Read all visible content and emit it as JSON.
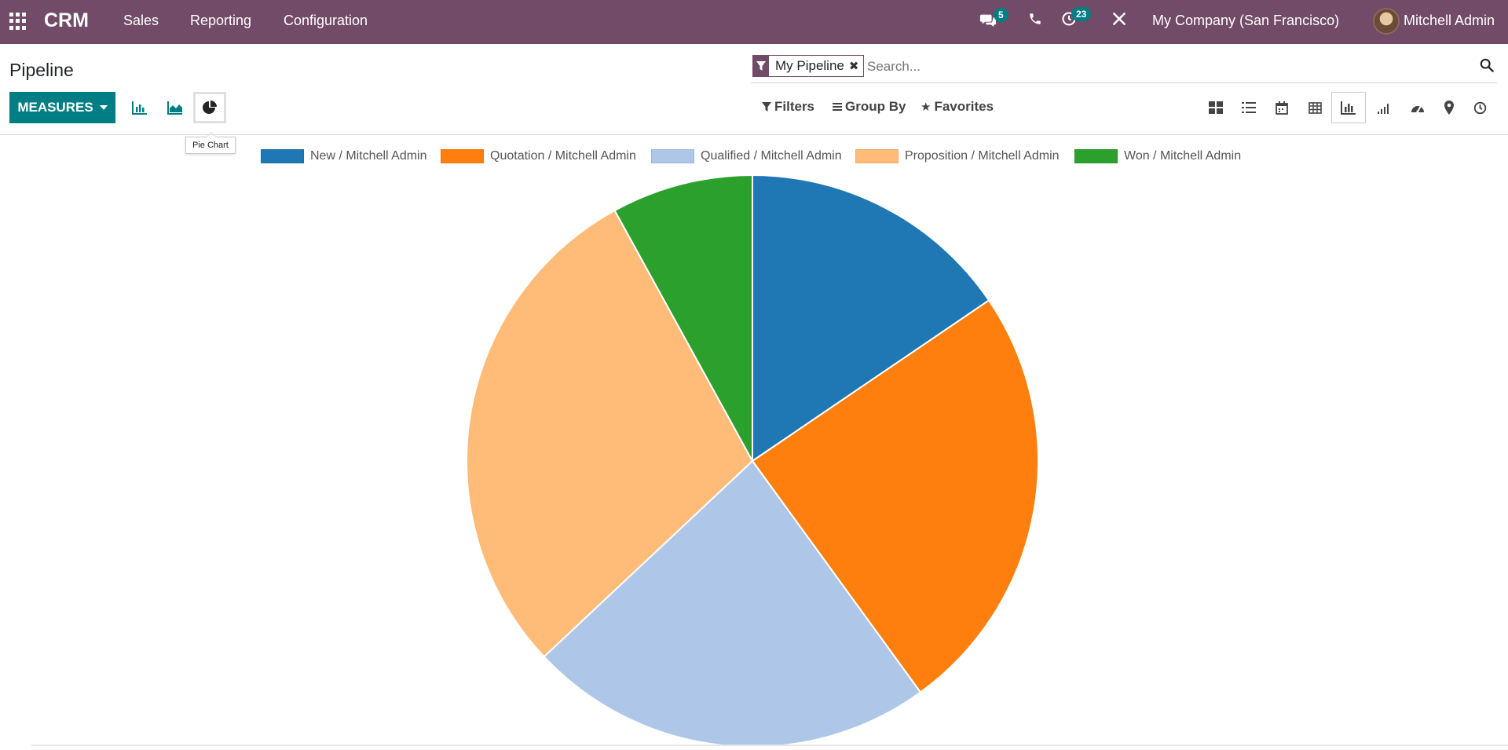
{
  "navbar": {
    "brand": "CRM",
    "menu": [
      "Sales",
      "Reporting",
      "Configuration"
    ],
    "messages_badge": "5",
    "activities_badge": "23",
    "company": "My Company (San Francisco)",
    "user": "Mitchell Admin"
  },
  "control_panel": {
    "title": "Pipeline",
    "measures_label": "MEASURES",
    "tooltip": "Pie Chart",
    "facet_label": "My Pipeline",
    "search_placeholder": "Search...",
    "filters_label": "Filters",
    "group_by_label": "Group By",
    "favorites_label": "Favorites"
  },
  "icons": {
    "apps": "apps-grid-icon",
    "messages": "chat-icon",
    "phone": "phone-icon",
    "activities": "clock-icon",
    "tools": "tools-icon",
    "bar_chart": "bar-chart-icon",
    "line_chart": "area-chart-icon",
    "pie_chart": "pie-chart-icon",
    "views": [
      "kanban-icon",
      "list-icon",
      "calendar-icon",
      "pivot-icon",
      "graph-icon",
      "cohort-icon",
      "dashboard-icon",
      "map-icon",
      "activity-icon"
    ]
  },
  "chart_data": {
    "type": "pie",
    "title": "",
    "legend_position": "top",
    "categories": [
      "New / Mitchell Admin",
      "Quotation / Mitchell Admin",
      "Qualified / Mitchell Admin",
      "Proposition / Mitchell Admin",
      "Won / Mitchell Admin"
    ],
    "values": [
      15.5,
      24.5,
      23,
      29,
      8
    ],
    "colors": [
      "#1f77b4",
      "#ff7f0e",
      "#aec7e8",
      "#ffbb78",
      "#2ca02c"
    ]
  }
}
